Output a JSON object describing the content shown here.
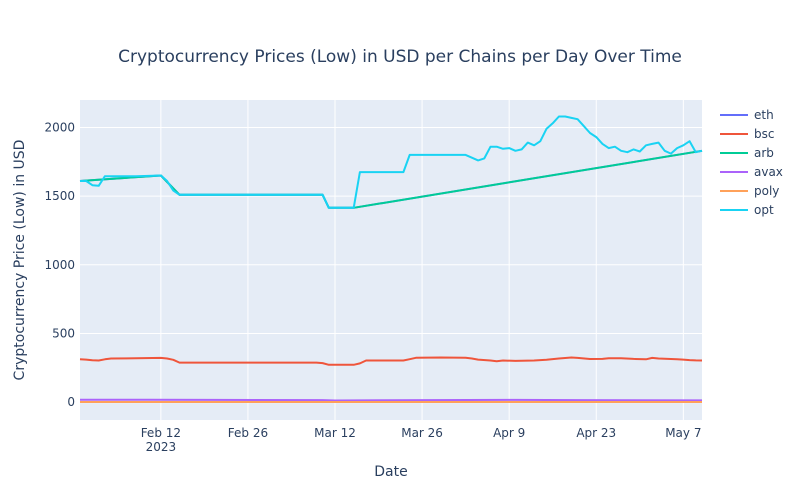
{
  "chart_data": {
    "type": "line",
    "title": "Cryptocurrency Prices (Low) in USD per Chains per Day Over Time",
    "xlabel": "Date",
    "ylabel": "Cryptocurrency Price (Low) in USD",
    "x_range": [
      "2023-01-30",
      "2023-05-10"
    ],
    "y_range": [
      -130,
      2200
    ],
    "x_ticks": [
      {
        "date": "2023-02-12",
        "label": "Feb 12",
        "sublabel": "2023"
      },
      {
        "date": "2023-02-26",
        "label": "Feb 26",
        "sublabel": ""
      },
      {
        "date": "2023-03-12",
        "label": "Mar 12",
        "sublabel": ""
      },
      {
        "date": "2023-03-26",
        "label": "Mar 26",
        "sublabel": ""
      },
      {
        "date": "2023-04-09",
        "label": "Apr 9",
        "sublabel": ""
      },
      {
        "date": "2023-04-23",
        "label": "Apr 23",
        "sublabel": ""
      },
      {
        "date": "2023-05-07",
        "label": "May 7",
        "sublabel": ""
      }
    ],
    "y_ticks": [
      {
        "value": 0,
        "label": "0"
      },
      {
        "value": 500,
        "label": "500"
      },
      {
        "value": 1000,
        "label": "1000"
      },
      {
        "value": 1500,
        "label": "1500"
      },
      {
        "value": 2000,
        "label": "2000"
      }
    ],
    "grid": true,
    "legend_position": "right",
    "colors": {
      "background": "#E5ECF6",
      "grid": "#ffffff",
      "text": "#2a3f5f"
    },
    "series": [
      {
        "name": "eth",
        "color": "#636EFA",
        "points": [
          [
            "2023-01-30",
            1610
          ],
          [
            "2023-02-12",
            1650
          ],
          [
            "2023-02-15",
            1510
          ],
          [
            "2023-03-10",
            1510
          ],
          [
            "2023-03-11",
            1415
          ],
          [
            "2023-03-15",
            1415
          ],
          [
            "2023-05-10",
            1830
          ]
        ]
      },
      {
        "name": "bsc",
        "color": "#EF553B",
        "points": [
          [
            "2023-01-30",
            312
          ],
          [
            "2023-01-31",
            310
          ],
          [
            "2023-02-01",
            305
          ],
          [
            "2023-02-02",
            303
          ],
          [
            "2023-02-03",
            312
          ],
          [
            "2023-02-04",
            318
          ],
          [
            "2023-02-08",
            319
          ],
          [
            "2023-02-12",
            322
          ],
          [
            "2023-02-13",
            318
          ],
          [
            "2023-02-14",
            308
          ],
          [
            "2023-02-15",
            288
          ],
          [
            "2023-02-20",
            288
          ],
          [
            "2023-02-26",
            288
          ],
          [
            "2023-03-04",
            288
          ],
          [
            "2023-03-09",
            288
          ],
          [
            "2023-03-10",
            284
          ],
          [
            "2023-03-11",
            272
          ],
          [
            "2023-03-13",
            272
          ],
          [
            "2023-03-15",
            272
          ],
          [
            "2023-03-16",
            282
          ],
          [
            "2023-03-17",
            303
          ],
          [
            "2023-03-20",
            303
          ],
          [
            "2023-03-23",
            303
          ],
          [
            "2023-03-24",
            313
          ],
          [
            "2023-03-25",
            323
          ],
          [
            "2023-03-29",
            325
          ],
          [
            "2023-04-02",
            323
          ],
          [
            "2023-04-03",
            318
          ],
          [
            "2023-04-04",
            310
          ],
          [
            "2023-04-06",
            303
          ],
          [
            "2023-04-07",
            298
          ],
          [
            "2023-04-08",
            303
          ],
          [
            "2023-04-10",
            300
          ],
          [
            "2023-04-13",
            303
          ],
          [
            "2023-04-15",
            309
          ],
          [
            "2023-04-17",
            318
          ],
          [
            "2023-04-19",
            325
          ],
          [
            "2023-04-20",
            322
          ],
          [
            "2023-04-22",
            314
          ],
          [
            "2023-04-24",
            315
          ],
          [
            "2023-04-25",
            320
          ],
          [
            "2023-04-27",
            320
          ],
          [
            "2023-04-29",
            315
          ],
          [
            "2023-05-01",
            312
          ],
          [
            "2023-05-02",
            322
          ],
          [
            "2023-05-03",
            318
          ],
          [
            "2023-05-06",
            313
          ],
          [
            "2023-05-07",
            310
          ],
          [
            "2023-05-08",
            306
          ],
          [
            "2023-05-09",
            304
          ],
          [
            "2023-05-10",
            303
          ]
        ]
      },
      {
        "name": "arb",
        "color": "#00CC96",
        "points": [
          [
            "2023-01-30",
            1610
          ],
          [
            "2023-02-12",
            1650
          ],
          [
            "2023-02-15",
            1510
          ],
          [
            "2023-03-10",
            1510
          ],
          [
            "2023-03-11",
            1415
          ],
          [
            "2023-03-15",
            1415
          ],
          [
            "2023-05-10",
            1830
          ]
        ]
      },
      {
        "name": "avax",
        "color": "#AB63FA",
        "points": [
          [
            "2023-01-30",
            18
          ],
          [
            "2023-02-10",
            18
          ],
          [
            "2023-02-20",
            16
          ],
          [
            "2023-03-10",
            15
          ],
          [
            "2023-03-12",
            12
          ],
          [
            "2023-03-20",
            14
          ],
          [
            "2023-04-10",
            16
          ],
          [
            "2023-04-20",
            15
          ],
          [
            "2023-05-10",
            13
          ]
        ]
      },
      {
        "name": "poly",
        "color": "#FFA15A",
        "points": [
          [
            "2023-01-30",
            1
          ],
          [
            "2023-05-10",
            1
          ]
        ]
      },
      {
        "name": "opt",
        "color": "#19D3F3",
        "points": [
          [
            "2023-01-30",
            1610
          ],
          [
            "2023-01-31",
            1610
          ],
          [
            "2023-02-01",
            1580
          ],
          [
            "2023-02-02",
            1575
          ],
          [
            "2023-02-03",
            1645
          ],
          [
            "2023-02-04",
            1645
          ],
          [
            "2023-02-08",
            1645
          ],
          [
            "2023-02-12",
            1650
          ],
          [
            "2023-02-13",
            1610
          ],
          [
            "2023-02-14",
            1540
          ],
          [
            "2023-02-15",
            1510
          ],
          [
            "2023-02-20",
            1510
          ],
          [
            "2023-02-26",
            1510
          ],
          [
            "2023-03-04",
            1510
          ],
          [
            "2023-03-10",
            1510
          ],
          [
            "2023-03-11",
            1415
          ],
          [
            "2023-03-13",
            1415
          ],
          [
            "2023-03-15",
            1415
          ],
          [
            "2023-03-16",
            1675
          ],
          [
            "2023-03-17",
            1675
          ],
          [
            "2023-03-20",
            1675
          ],
          [
            "2023-03-23",
            1675
          ],
          [
            "2023-03-24",
            1800
          ],
          [
            "2023-03-26",
            1800
          ],
          [
            "2023-03-29",
            1800
          ],
          [
            "2023-04-02",
            1800
          ],
          [
            "2023-04-03",
            1780
          ],
          [
            "2023-04-04",
            1760
          ],
          [
            "2023-04-05",
            1775
          ],
          [
            "2023-04-06",
            1860
          ],
          [
            "2023-04-07",
            1860
          ],
          [
            "2023-04-08",
            1845
          ],
          [
            "2023-04-09",
            1850
          ],
          [
            "2023-04-10",
            1830
          ],
          [
            "2023-04-11",
            1840
          ],
          [
            "2023-04-12",
            1890
          ],
          [
            "2023-04-13",
            1870
          ],
          [
            "2023-04-14",
            1900
          ],
          [
            "2023-04-15",
            1990
          ],
          [
            "2023-04-16",
            2030
          ],
          [
            "2023-04-17",
            2080
          ],
          [
            "2023-04-18",
            2080
          ],
          [
            "2023-04-19",
            2070
          ],
          [
            "2023-04-20",
            2060
          ],
          [
            "2023-04-21",
            2010
          ],
          [
            "2023-04-22",
            1960
          ],
          [
            "2023-04-23",
            1930
          ],
          [
            "2023-04-24",
            1880
          ],
          [
            "2023-04-25",
            1850
          ],
          [
            "2023-04-26",
            1860
          ],
          [
            "2023-04-27",
            1830
          ],
          [
            "2023-04-28",
            1820
          ],
          [
            "2023-04-29",
            1840
          ],
          [
            "2023-04-30",
            1825
          ],
          [
            "2023-05-01",
            1870
          ],
          [
            "2023-05-02",
            1880
          ],
          [
            "2023-05-03",
            1890
          ],
          [
            "2023-05-04",
            1830
          ],
          [
            "2023-05-05",
            1810
          ],
          [
            "2023-05-06",
            1850
          ],
          [
            "2023-05-07",
            1870
          ],
          [
            "2023-05-08",
            1900
          ],
          [
            "2023-05-09",
            1820
          ],
          [
            "2023-05-10",
            1830
          ]
        ]
      }
    ]
  }
}
